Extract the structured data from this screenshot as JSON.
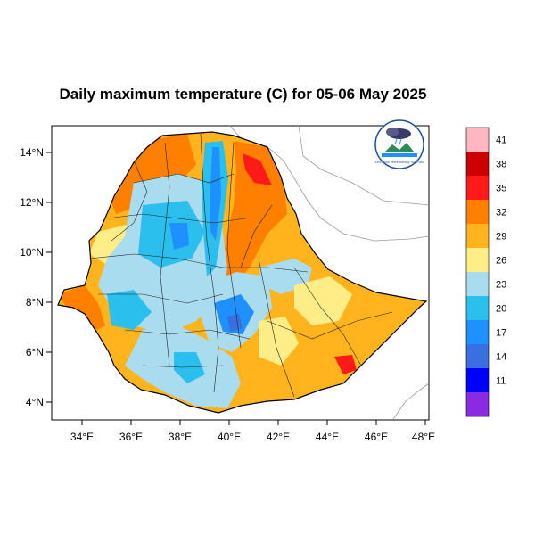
{
  "title": "Daily maximum temperature (C) for 05-06 May 2025",
  "axes": {
    "lon_ticks": [
      "34°E",
      "36°E",
      "38°E",
      "40°E",
      "42°E",
      "44°E",
      "46°E",
      "48°E"
    ],
    "lat_ticks": [
      "14°N",
      "12°N",
      "10°N",
      "8°N",
      "6°N",
      "4°N"
    ]
  },
  "colorbar": {
    "labels": [
      "41",
      "38",
      "35",
      "32",
      "29",
      "26",
      "23",
      "20",
      "17",
      "14",
      "11"
    ],
    "colors": [
      "#ffb6c1",
      "#cc0000",
      "#ff1a1a",
      "#ff8000",
      "#ffb41e",
      "#ffee88",
      "#aadcf0",
      "#2bbfee",
      "#1e90ff",
      "#3a6fe0",
      "#0000ff",
      "#8a2be2"
    ]
  },
  "logo_text": "Ethiopian Meteorology Institute",
  "chart_data": {
    "type": "heatmap",
    "title": "Daily maximum temperature (C) for 05-06 May 2025",
    "region": "Ethiopia",
    "xlim": [
      33,
      48.2
    ],
    "ylim": [
      3.2,
      15
    ],
    "x_ticks": [
      34,
      36,
      38,
      40,
      42,
      44,
      46,
      48
    ],
    "y_ticks": [
      14,
      12,
      10,
      8,
      6,
      4
    ],
    "color_levels": [
      11,
      14,
      17,
      20,
      23,
      26,
      29,
      32,
      35,
      38,
      41
    ]
  }
}
